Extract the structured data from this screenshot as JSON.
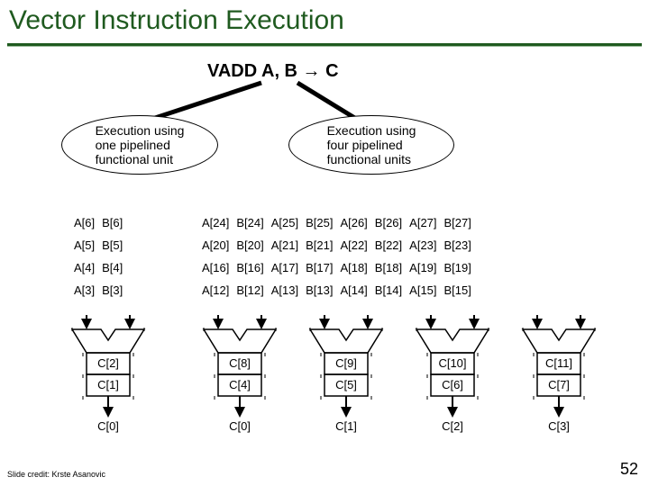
{
  "title": "Vector Instruction Execution",
  "vadd": "VADD A, B → C",
  "ellipses": {
    "one": "Execution using\none pipelined\nfunctional unit",
    "four": "Execution using\nfour pipelined\nfunctional units"
  },
  "left_table": [
    [
      "A[6]",
      "B[6]"
    ],
    [
      "A[5]",
      "B[5]"
    ],
    [
      "A[4]",
      "B[4]"
    ],
    [
      "A[3]",
      "B[3]"
    ]
  ],
  "right_table": [
    [
      "A[24]",
      "B[24]",
      "A[25]",
      "B[25]",
      "A[26]",
      "B[26]",
      "A[27]",
      "B[27]"
    ],
    [
      "A[20]",
      "B[20]",
      "A[21]",
      "B[21]",
      "A[22]",
      "B[22]",
      "A[23]",
      "B[23]"
    ],
    [
      "A[16]",
      "B[16]",
      "A[17]",
      "B[17]",
      "A[18]",
      "B[18]",
      "A[19]",
      "B[19]"
    ],
    [
      "A[12]",
      "B[12]",
      "A[13]",
      "B[13]",
      "A[14]",
      "B[14]",
      "A[15]",
      "B[15]"
    ]
  ],
  "left_pipeline": {
    "l1": "C[2]",
    "l2": "C[1]",
    "out": "C[0]"
  },
  "right_pipelines": [
    {
      "l1": "C[8]",
      "l2": "C[4]",
      "out": "C[0]"
    },
    {
      "l1": "C[9]",
      "l2": "C[5]",
      "out": "C[1]"
    },
    {
      "l1": "C[10]",
      "l2": "C[6]",
      "out": "C[2]"
    },
    {
      "l1": "C[11]",
      "l2": "C[7]",
      "out": "C[3]"
    }
  ],
  "credit": "Slide credit: Krste Asanovic",
  "slide_number": "52",
  "colors": {
    "title": "#1f5a1f",
    "stroke": "#000000"
  }
}
